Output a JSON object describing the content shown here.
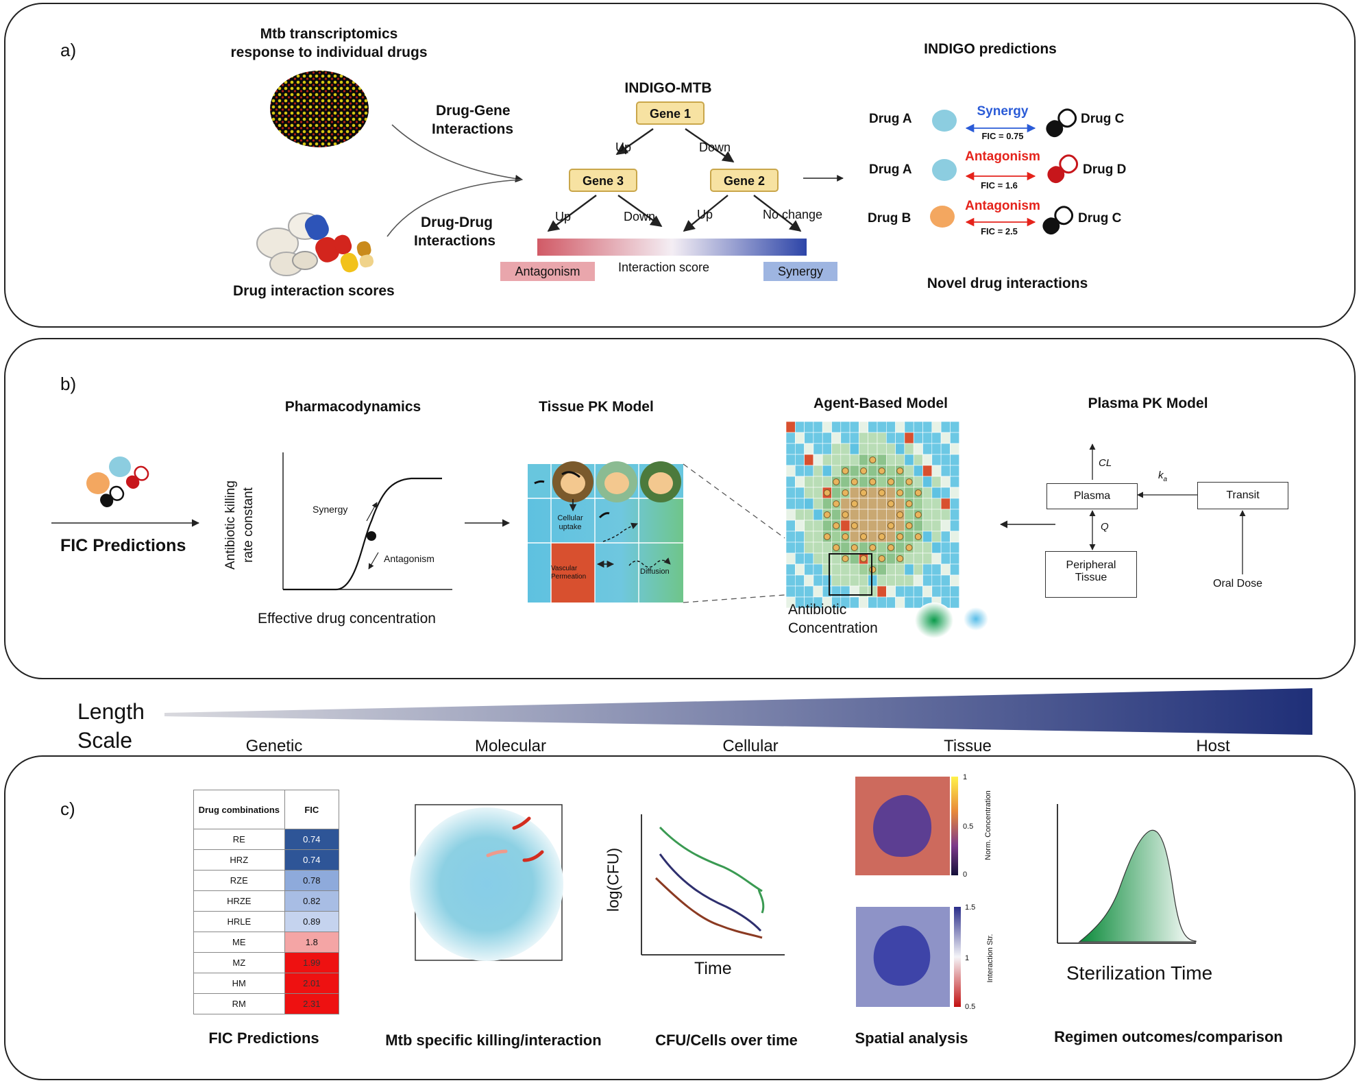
{
  "panel_a": {
    "label": "a)",
    "transcriptomics_title": [
      "Mtb transcriptomics",
      "response to individual drugs"
    ],
    "drug_gene_label": [
      "Drug-Gene",
      "Interactions"
    ],
    "drug_drug_label": [
      "Drug-Drug",
      "Interactions"
    ],
    "drug_scores_label": "Drug interaction scores",
    "indigo_title": "INDIGO-MTB",
    "gene1": "Gene 1",
    "gene2": "Gene 2",
    "gene3": "Gene 3",
    "up": "Up",
    "down": "Down",
    "no_change": "No change",
    "interaction_score": "Interaction score",
    "antagonism_label": "Antagonism",
    "synergy_label": "Synergy",
    "predictions_title": "INDIGO predictions",
    "novel_title": "Novel drug interactions",
    "predictions": [
      {
        "left": "Drug A",
        "right": "Drug C",
        "type": "Synergy",
        "fic": "FIC = 0.75",
        "color": "#2a5bd7"
      },
      {
        "left": "Drug A",
        "right": "Drug D",
        "type": "Antagonism",
        "fic": "FIC = 1.6",
        "color": "#e5231b"
      },
      {
        "left": "Drug B",
        "right": "Drug C",
        "type": "Antagonism",
        "fic": "FIC = 2.5",
        "color": "#e5231b"
      }
    ]
  },
  "panel_b": {
    "label": "b)",
    "fic_predictions": "FIC Predictions",
    "pd_title": "Pharmacodynamics",
    "pd_ylabel": [
      "Antibiotic killing",
      "rate constant"
    ],
    "pd_xlabel": "Effective drug concentration",
    "pd_synergy": "Synergy",
    "pd_antagonism": "Antagonism",
    "tissue_title": "Tissue PK Model",
    "cellular_uptake": [
      "Cellular",
      "uptake"
    ],
    "vascular_perm": [
      "Vascular",
      "Permeation"
    ],
    "diffusion": "Diffusion",
    "abm_title": "Agent-Based Model",
    "antibiotic_conc": [
      "Antibiotic",
      "Concentration"
    ],
    "plasma_title": "Plasma PK Model",
    "plasma": "Plasma",
    "transit": "Transit",
    "peripheral": [
      "Peripheral",
      "Tissue"
    ],
    "oral_dose": "Oral Dose",
    "cl": "CL",
    "ka": "k",
    "ka_sub": "a",
    "q": "Q"
  },
  "length_scale": {
    "title": [
      "Length",
      "Scale"
    ],
    "levels": [
      "Genetic",
      "Molecular",
      "Cellular",
      "Tissue",
      "Host"
    ]
  },
  "panel_c": {
    "label": "c)",
    "table_header": [
      "Drug combinations",
      "FIC"
    ],
    "table_rows": [
      {
        "combo": "RE",
        "fic": "0.74",
        "color": "#2e5597",
        "text": "#fff"
      },
      {
        "combo": "HRZ",
        "fic": "0.74",
        "color": "#2e5597",
        "text": "#fff"
      },
      {
        "combo": "RZE",
        "fic": "0.78",
        "color": "#8eaadb",
        "text": "#111"
      },
      {
        "combo": "HRZE",
        "fic": "0.82",
        "color": "#a8bde4",
        "text": "#111"
      },
      {
        "combo": "HRLE",
        "fic": "0.89",
        "color": "#c5d3ee",
        "text": "#111"
      },
      {
        "combo": "ME",
        "fic": "1.8",
        "color": "#f4a5a5",
        "text": "#111"
      },
      {
        "combo": "MZ",
        "fic": "1.99",
        "color": "#ee1111",
        "text": "#333"
      },
      {
        "combo": "HM",
        "fic": "2.01",
        "color": "#ee1111",
        "text": "#333"
      },
      {
        "combo": "RM",
        "fic": "2.31",
        "color": "#ee1111",
        "text": "#333"
      }
    ],
    "fic_caption": "FIC Predictions",
    "mtb_caption": "Mtb specific killing/interaction",
    "cfu_ylabel": "log(CFU)",
    "cfu_xlabel": "Time",
    "cfu_caption": "CFU/Cells over time",
    "spatial_caption": "Spatial analysis",
    "cb1_label": "Norm. Concentration",
    "cb1_ticks": [
      "1",
      "0.5",
      "0"
    ],
    "cb2_label": "Interaction Str.",
    "cb2_ticks": [
      "1.5",
      "1",
      "0.5"
    ],
    "steril_xlabel": "Sterilization Time",
    "regimen_caption": "Regimen outcomes/comparison"
  }
}
